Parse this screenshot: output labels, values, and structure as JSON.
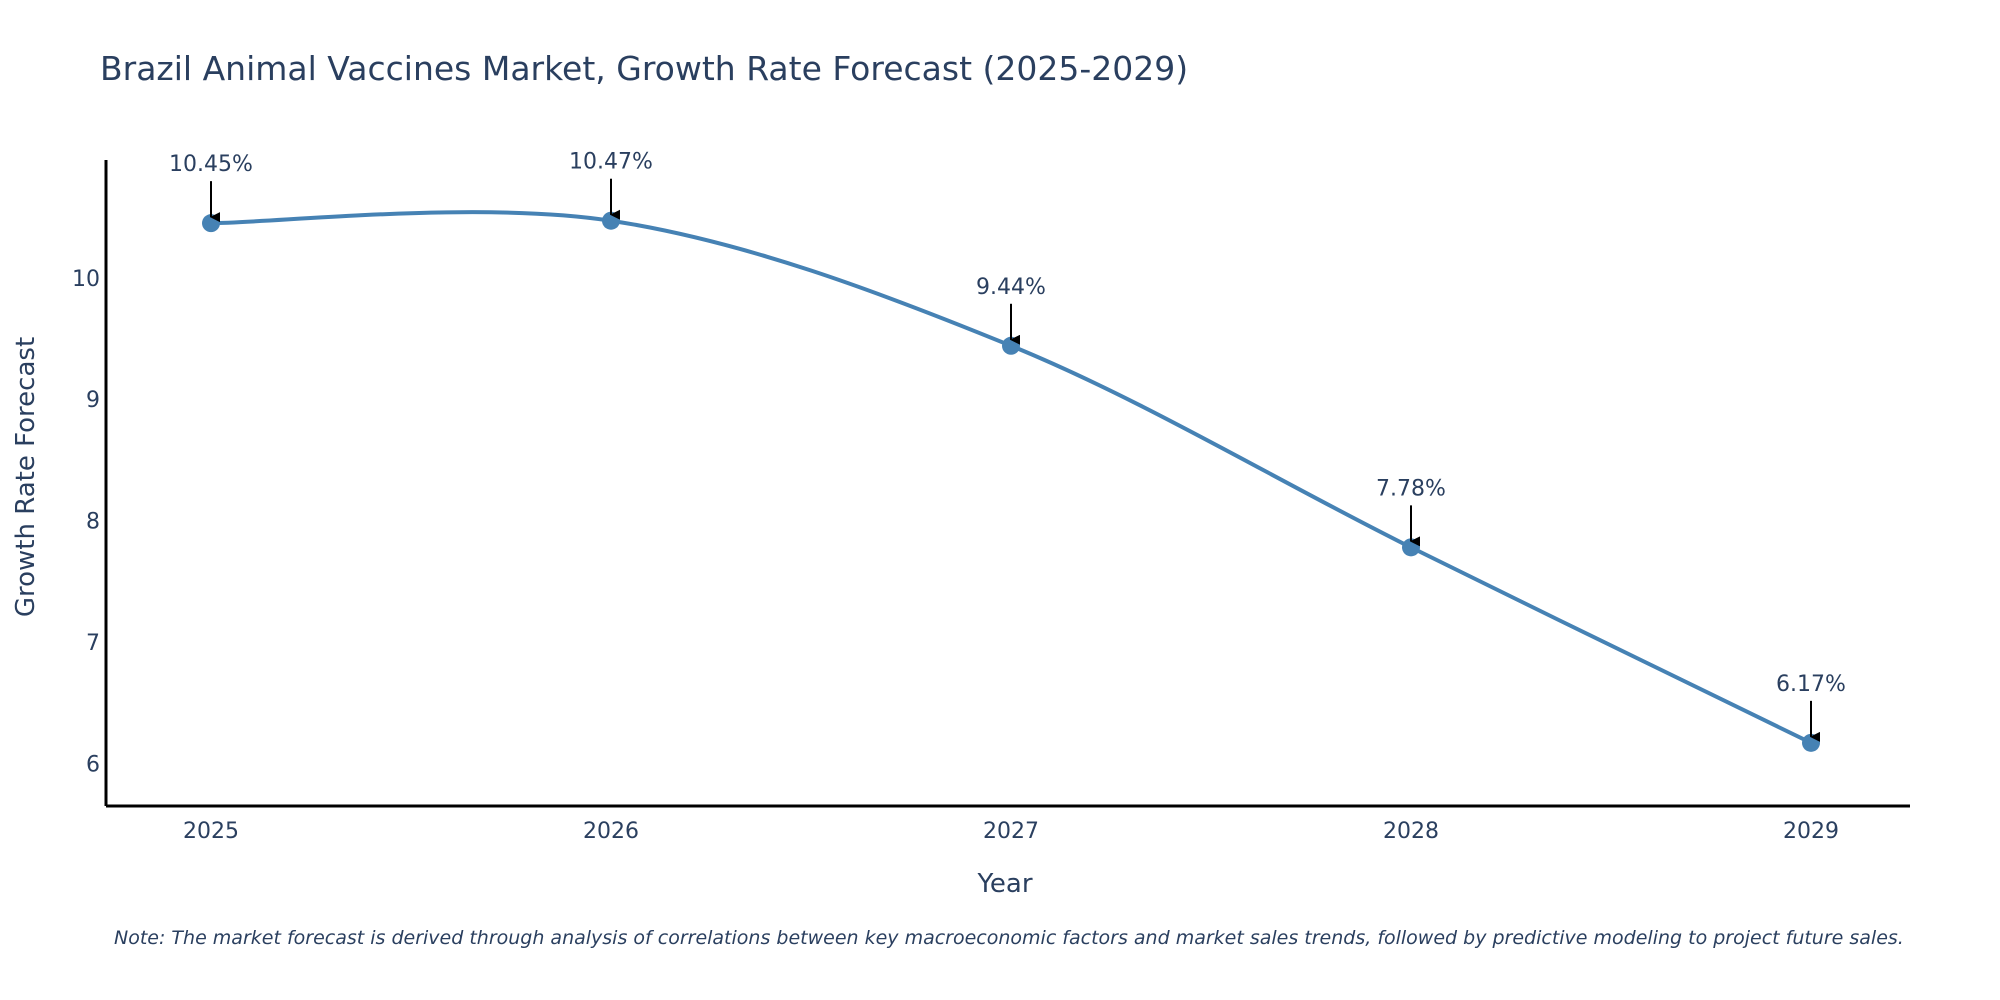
{
  "colors": {
    "line": "#4682b4",
    "marker": "#4682b4",
    "axis": "#000000",
    "text": "#2a3f5f",
    "arrow": "#000000"
  },
  "chart_data": {
    "type": "line",
    "title": "Brazil Animal Vaccines Market, Growth Rate Forecast (2025-2029)",
    "xlabel": "Year",
    "ylabel": "Growth Rate Forecast",
    "categories": [
      "2025",
      "2026",
      "2027",
      "2028",
      "2029"
    ],
    "series": [
      {
        "name": "Growth Rate Forecast",
        "values": [
          10.45,
          10.47,
          9.44,
          7.78,
          6.17
        ]
      }
    ],
    "annotations": [
      "10.45%",
      "10.47%",
      "9.44%",
      "7.78%",
      "6.17%"
    ],
    "yticks": [
      "6",
      "7",
      "8",
      "9",
      "10"
    ],
    "ylim": [
      5.65,
      10.97
    ],
    "line_shape": "spline",
    "grid": false,
    "legend": "none"
  },
  "note": "Note: The market forecast is derived through analysis of correlations between key macroeconomic factors and market sales trends, followed by predictive modeling to project future sales."
}
